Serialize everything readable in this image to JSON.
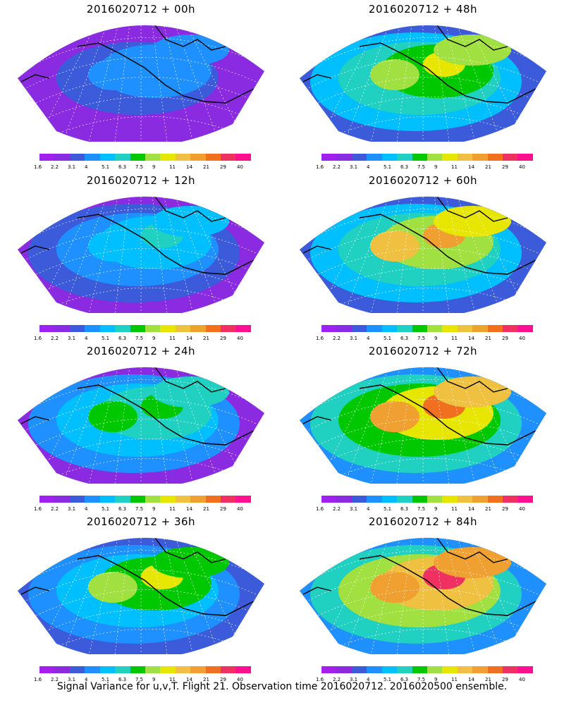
{
  "panels": [
    {
      "title": "2016020712 + 00h",
      "col": 0,
      "row": 0
    },
    {
      "title": "2016020712 + 48h",
      "col": 1,
      "row": 0
    },
    {
      "title": "2016020712 + 12h",
      "col": 0,
      "row": 1
    },
    {
      "title": "2016020712 + 60h",
      "col": 1,
      "row": 1
    },
    {
      "title": "2016020712 + 24h",
      "col": 0,
      "row": 2
    },
    {
      "title": "2016020712 + 72h",
      "col": 1,
      "row": 2
    },
    {
      "title": "2016020712 + 36h",
      "col": 0,
      "row": 3
    },
    {
      "title": "2016020712 + 84h",
      "col": 1,
      "row": 3
    }
  ],
  "colorbar": {
    "colors": [
      "#a020f0",
      "#8a2be2",
      "#3b5bdb",
      "#1e90ff",
      "#00bfff",
      "#20d0c0",
      "#00c800",
      "#a0e040",
      "#e6e600",
      "#f0c040",
      "#f0a030",
      "#f07020",
      "#f03060",
      "#ff1090"
    ],
    "labels": [
      "1.6",
      "2.2",
      "3.1",
      "4",
      "5.1",
      "6.3",
      "7.5",
      "9",
      "11",
      "14",
      "21",
      "29",
      "40"
    ]
  },
  "caption": "Signal Variance for u,v,T. Flight 21. Observation time 2016020712. 2016020500 ensemble."
}
